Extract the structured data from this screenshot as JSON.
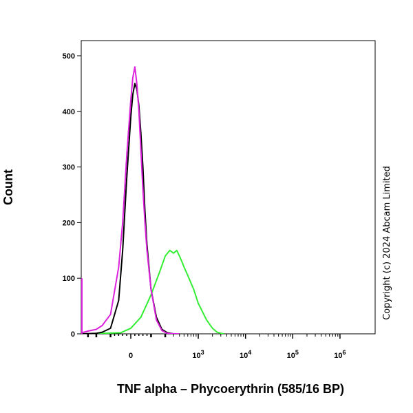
{
  "chart_data": {
    "type": "line",
    "xlabel": "TNF alpha – Phycoerythrin (585/16 BP)",
    "ylabel": "Count",
    "ylim": [
      0,
      520
    ],
    "y_ticks": [
      0,
      100,
      200,
      300,
      400,
      500
    ],
    "x_scale": "biexponential",
    "x_ticks": [
      {
        "value": 0,
        "label": "0",
        "exp": ""
      },
      {
        "value": 1000,
        "label": "10",
        "exp": "3"
      },
      {
        "value": 10000,
        "label": "10",
        "exp": "4"
      },
      {
        "value": 100000,
        "label": "10",
        "exp": "5"
      },
      {
        "value": 1000000,
        "label": "10",
        "exp": "6"
      }
    ],
    "grid": false,
    "legend": "none",
    "copyright": "Copyright (c) 2024 Abcam Limited",
    "series": [
      {
        "color": "#000000",
        "x": [
          -800,
          -400,
          -200,
          -150,
          -100,
          -60,
          -40,
          -20,
          0,
          10,
          20,
          30,
          40,
          50,
          60,
          70,
          80,
          100,
          130,
          170,
          220,
          300,
          400
        ],
        "y": [
          0,
          0,
          1,
          3,
          10,
          60,
          150,
          280,
          390,
          430,
          450,
          440,
          410,
          360,
          300,
          220,
          160,
          80,
          30,
          8,
          2,
          0,
          0
        ]
      },
      {
        "color": "#dd22dd",
        "x": [
          -2000,
          -1900,
          -1800,
          -1600,
          -1000,
          -500,
          -300,
          -200,
          -150,
          -100,
          -60,
          -40,
          -20,
          0,
          10,
          20,
          30,
          40,
          50,
          60,
          70,
          80,
          100,
          130,
          170,
          220,
          300,
          400
        ],
        "y": [
          100,
          40,
          10,
          3,
          0,
          2,
          5,
          8,
          15,
          35,
          120,
          200,
          320,
          420,
          460,
          480,
          450,
          400,
          330,
          260,
          200,
          150,
          80,
          25,
          6,
          1,
          0,
          0
        ]
      },
      {
        "color": "#33ee33",
        "x": [
          -300,
          -50,
          0,
          50,
          100,
          150,
          200,
          250,
          300,
          350,
          400,
          450,
          500,
          600,
          800,
          1000,
          1500,
          2000,
          2500,
          3000,
          3500
        ],
        "y": [
          0,
          2,
          10,
          30,
          70,
          110,
          140,
          150,
          145,
          150,
          140,
          130,
          120,
          105,
          80,
          55,
          25,
          10,
          3,
          1,
          0
        ]
      }
    ]
  }
}
